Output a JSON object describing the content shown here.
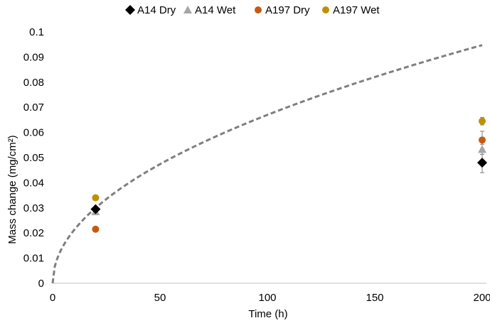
{
  "chart_data": {
    "type": "scatter",
    "xlabel": "Time (h)",
    "ylabel": "Mass change (mg/cm²)",
    "xlim": [
      0,
      200
    ],
    "ylim": [
      0,
      0.1
    ],
    "x_ticks": [
      "0",
      "50",
      "100",
      "150",
      "200"
    ],
    "y_ticks": [
      "0",
      "0.01",
      "0.02",
      "0.03",
      "0.04",
      "0.05",
      "0.06",
      "0.07",
      "0.08",
      "0.09",
      "0.1"
    ],
    "grid": false,
    "legend_position": "top",
    "series": [
      {
        "name": "A14 Dry",
        "marker": "diamond",
        "color": "#000000",
        "points": [
          {
            "x": 20,
            "y": 0.0295,
            "err": 0
          },
          {
            "x": 200,
            "y": 0.048,
            "err": 0.004
          }
        ]
      },
      {
        "name": "A14 Wet",
        "marker": "triangle",
        "color": "#a6a6a6",
        "points": [
          {
            "x": 20,
            "y": 0.0285,
            "err": 0
          },
          {
            "x": 200,
            "y": 0.0533,
            "err": 0.002
          }
        ]
      },
      {
        "name": "A197 Dry",
        "marker": "circle",
        "color": "#c55a11",
        "points": [
          {
            "x": 20,
            "y": 0.0215,
            "err": 0
          },
          {
            "x": 200,
            "y": 0.057,
            "err": 0.0035
          }
        ]
      },
      {
        "name": "A197 Wet",
        "marker": "circle",
        "color": "#bf9000",
        "points": [
          {
            "x": 20,
            "y": 0.034,
            "err": 0
          },
          {
            "x": 200,
            "y": 0.0645,
            "err": 0.0015
          }
        ]
      }
    ],
    "trendline": {
      "style": "dashed",
      "color": "#7f7f7f",
      "equation": "y = 0.0067 * x^0.5",
      "x_range": [
        0,
        200
      ]
    }
  }
}
